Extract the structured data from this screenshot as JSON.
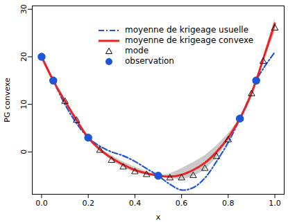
{
  "chart_data": {
    "type": "line",
    "x_label": "x",
    "y_label": "PG convexe",
    "xlim": [
      -0.04,
      1.04
    ],
    "xticks": [
      {
        "value": 0,
        "label": "0.0"
      },
      {
        "value": 0.2,
        "label": "0.2"
      },
      {
        "value": 0.4,
        "label": "0.4"
      },
      {
        "value": 0.6,
        "label": "0.6"
      },
      {
        "value": 0.8,
        "label": "0.8"
      },
      {
        "value": 1,
        "label": "1.0"
      }
    ],
    "ylim": [
      -8.9,
      30.7
    ],
    "yticks": [
      0,
      10,
      20,
      30
    ],
    "legend": "top",
    "x": [
      0,
      0.05,
      0.1,
      0.15,
      0.2,
      0.25,
      0.3,
      0.35,
      0.4,
      0.45,
      0.5,
      0.55,
      0.6,
      0.65,
      0.7,
      0.75,
      0.8,
      0.85,
      0.9,
      0.92,
      0.95,
      1
    ],
    "band": {
      "color": "#bdbdbd",
      "lower": [
        20,
        15,
        10.5,
        6.5,
        3,
        0.2,
        -1.8,
        -3.3,
        -4.3,
        -4.9,
        -5,
        -5.6,
        -5.8,
        -5.2,
        -3.8,
        -1.3,
        2.3,
        7,
        12,
        15,
        19,
        25
      ],
      "upper": [
        20,
        15,
        10.9,
        6.9,
        3,
        0.8,
        -0.8,
        -2.1,
        -3.2,
        -4.1,
        -5,
        -4.6,
        -3.5,
        -2.2,
        -0.8,
        1.3,
        3.8,
        7,
        12.6,
        15,
        20,
        28
      ]
    },
    "series": [
      {
        "name": "moyenne de krigeage usuelle",
        "type": "line",
        "color": "#1f55d8",
        "line_style": "dashdot",
        "values": [
          20,
          15,
          10,
          6,
          3,
          1.2,
          0,
          -0.8,
          -2,
          -3.5,
          -5,
          -6.8,
          -8,
          -7.5,
          -5.5,
          -2,
          2,
          7,
          12.5,
          15,
          17.5,
          21
        ]
      },
      {
        "name": "moyenne de krigeage convexe",
        "type": "line",
        "color": "#ee2222",
        "line_style": "solid",
        "values": [
          20,
          15,
          10.7,
          6.7,
          3,
          0.5,
          -1.3,
          -2.7,
          -3.8,
          -4.5,
          -5,
          -5.2,
          -4.8,
          -3.8,
          -2.3,
          0,
          3,
          7,
          12.3,
          15,
          19.5,
          27
        ]
      },
      {
        "name": "mode",
        "type": "scatter",
        "color": "#000000",
        "marker": "triangle",
        "values": [
          20,
          15,
          10.6,
          6.6,
          3,
          0.3,
          -1.8,
          -3.2,
          -4.2,
          -4.8,
          -5,
          -5.5,
          -5.5,
          -5,
          -3.5,
          -1,
          2.5,
          7,
          12.2,
          15,
          19,
          26
        ]
      },
      {
        "name": "observation",
        "type": "scatter",
        "color": "#1f55d8",
        "marker": "circle",
        "values": [
          20,
          15,
          null,
          null,
          3,
          null,
          null,
          null,
          null,
          null,
          -5,
          null,
          null,
          null,
          null,
          null,
          null,
          7,
          null,
          15,
          null,
          null
        ]
      }
    ]
  }
}
